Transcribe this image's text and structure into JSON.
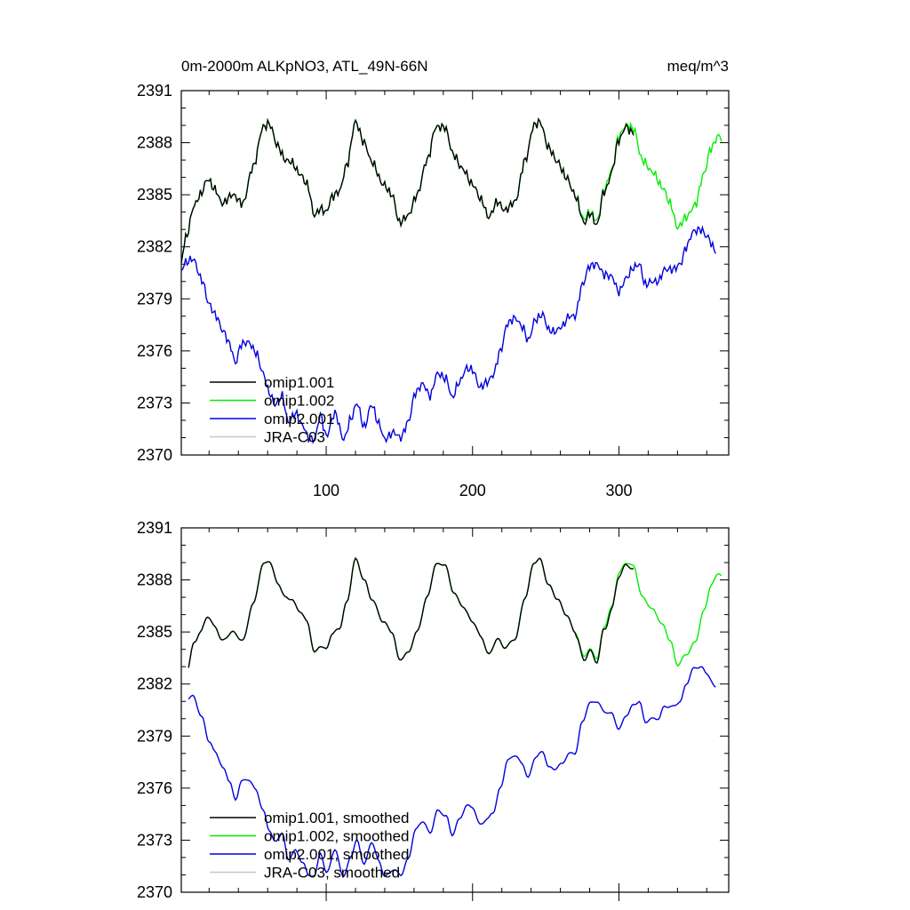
{
  "chart_data": [
    {
      "type": "line",
      "title_left": "0m-2000m ALKpNO3, ATL_49N-66N",
      "title_right": "meq/m^3",
      "xlabel": "",
      "ylabel": "",
      "xlim": [
        1,
        375
      ],
      "ylim": [
        2370,
        2391
      ],
      "y_ticks": [
        "2370",
        "2373",
        "2376",
        "2379",
        "2382",
        "2385",
        "2388",
        "2391"
      ],
      "x_ticks": [
        "100",
        "200",
        "300"
      ],
      "legend": [
        "omip1.001",
        "omip1.002",
        "omip2.001",
        "JRA-C03"
      ],
      "series": [
        {
          "name": "omip1.001",
          "color": "#000000",
          "x": [
            1,
            310
          ],
          "kind": "omip1",
          "values": "periodic"
        },
        {
          "name": "omip1.002",
          "color": "#00ee00",
          "x": [
            1,
            370
          ],
          "kind": "omip1",
          "values": "periodic"
        },
        {
          "name": "omip2.001",
          "color": "#0000dd",
          "x": [
            1,
            366
          ],
          "kind": "omip2",
          "values": "trend"
        },
        {
          "name": "JRA-C03",
          "color": "#c8c8c8",
          "x": [],
          "kind": "none",
          "values": "none"
        }
      ]
    },
    {
      "type": "line",
      "title_left": "",
      "title_right": "",
      "xlabel": "",
      "ylabel": "",
      "xlim": [
        1,
        375
      ],
      "ylim": [
        2370,
        2391
      ],
      "y_ticks": [
        "2370",
        "2373",
        "2376",
        "2379",
        "2382",
        "2385",
        "2388",
        "2391"
      ],
      "x_ticks": [],
      "legend": [
        "omip1.001, smoothed",
        "omip1.002, smoothed",
        "omip2.001, smoothed",
        "JRA-C03, smoothed"
      ],
      "series": [
        {
          "name": "omip1.001, smoothed",
          "color": "#000000",
          "x": [
            6,
            310
          ],
          "kind": "omip1",
          "values": "periodic"
        },
        {
          "name": "omip1.002, smoothed",
          "color": "#00ee00",
          "x": [
            6,
            370
          ],
          "kind": "omip1",
          "values": "periodic"
        },
        {
          "name": "omip2.001, smoothed",
          "color": "#0000dd",
          "x": [
            6,
            366
          ],
          "kind": "omip2",
          "values": "trend"
        },
        {
          "name": "JRA-C03, smoothed",
          "color": "#c8c8c8",
          "x": [],
          "kind": "none",
          "values": "none"
        }
      ]
    }
  ],
  "anchors": {
    "omip1_cycle": [
      [
        0,
        2380.7
      ],
      [
        4,
        2382.5
      ],
      [
        10,
        2384.4
      ],
      [
        14,
        2385.0
      ],
      [
        19,
        2385.9
      ],
      [
        24,
        2385.3
      ],
      [
        29,
        2384.5
      ],
      [
        36,
        2385.0
      ],
      [
        43,
        2384.5
      ],
      [
        50,
        2386.6
      ],
      [
        57,
        2388.9
      ],
      [
        61,
        2389.1
      ],
      [
        67,
        2387.8
      ],
      [
        72,
        2387.0
      ],
      [
        76,
        2386.9
      ],
      [
        82,
        2386.2
      ],
      [
        87,
        2385.6
      ],
      [
        92,
        2383.8
      ],
      [
        96,
        2384.2
      ],
      [
        100,
        2384.0
      ],
      [
        104,
        2384.9
      ],
      [
        109,
        2385.2
      ],
      [
        114,
        2386.7
      ],
      [
        120,
        2389.2
      ],
      [
        126,
        2388.0
      ],
      [
        131,
        2386.9
      ],
      [
        139,
        2385.6
      ],
      [
        145,
        2385.0
      ],
      [
        150,
        2383.4
      ],
      [
        156,
        2383.8
      ],
      [
        162,
        2385.0
      ],
      [
        169,
        2387.0
      ],
      [
        175,
        2388.9
      ],
      [
        181,
        2388.9
      ],
      [
        187,
        2387.3
      ],
      [
        193,
        2386.5
      ],
      [
        200,
        2385.6
      ],
      [
        206,
        2384.7
      ],
      [
        211,
        2383.7
      ],
      [
        217,
        2384.6
      ],
      [
        222,
        2384.1
      ],
      [
        229,
        2384.6
      ],
      [
        236,
        2387.0
      ],
      [
        242,
        2389.0
      ],
      [
        246,
        2389.2
      ],
      [
        252,
        2387.7
      ],
      [
        258,
        2386.9
      ],
      [
        264,
        2386.0
      ],
      [
        270,
        2385.0
      ],
      [
        276,
        2383.6
      ],
      [
        280,
        2384.0
      ],
      [
        285,
        2383.5
      ],
      [
        290,
        2385.3
      ],
      [
        295,
        2386.4
      ],
      [
        300,
        2388.4
      ],
      [
        305,
        2389.0
      ],
      [
        310,
        2388.8
      ],
      [
        316,
        2387.0
      ],
      [
        323,
        2386.3
      ],
      [
        330,
        2385.4
      ],
      [
        335,
        2384.5
      ],
      [
        340,
        2383.1
      ],
      [
        346,
        2383.7
      ],
      [
        352,
        2384.4
      ],
      [
        358,
        2386.2
      ],
      [
        363,
        2387.7
      ],
      [
        368,
        2388.4
      ],
      [
        374,
        2387.8
      ]
    ],
    "omip2_trend": [
      [
        0,
        2380.5
      ],
      [
        4,
        2381.1
      ],
      [
        9,
        2381.3
      ],
      [
        15,
        2380.1
      ],
      [
        20,
        2378.7
      ],
      [
        24,
        2378.1
      ],
      [
        30,
        2377.1
      ],
      [
        34,
        2376.4
      ],
      [
        38,
        2375.3
      ],
      [
        42,
        2376.4
      ],
      [
        47,
        2376.5
      ],
      [
        52,
        2375.9
      ],
      [
        57,
        2374.7
      ],
      [
        61,
        2373.6
      ],
      [
        65,
        2372.9
      ],
      [
        70,
        2373.4
      ],
      [
        74,
        2371.9
      ],
      [
        79,
        2372.4
      ],
      [
        84,
        2371.7
      ],
      [
        88,
        2371.0
      ],
      [
        92,
        2370.9
      ],
      [
        96,
        2372.3
      ],
      [
        100,
        2371.1
      ],
      [
        106,
        2372.4
      ],
      [
        112,
        2370.9
      ],
      [
        117,
        2372.1
      ],
      [
        121,
        2373.0
      ],
      [
        126,
        2371.6
      ],
      [
        131,
        2372.9
      ],
      [
        136,
        2371.8
      ],
      [
        140,
        2370.9
      ],
      [
        146,
        2371.3
      ],
      [
        151,
        2371.0
      ],
      [
        156,
        2371.9
      ],
      [
        161,
        2373.6
      ],
      [
        166,
        2374.1
      ],
      [
        171,
        2373.4
      ],
      [
        176,
        2374.7
      ],
      [
        182,
        2374.4
      ],
      [
        186,
        2373.3
      ],
      [
        191,
        2374.2
      ],
      [
        196,
        2375.0
      ],
      [
        200,
        2374.9
      ],
      [
        205,
        2373.9
      ],
      [
        210,
        2374.2
      ],
      [
        214,
        2374.6
      ],
      [
        219,
        2376.0
      ],
      [
        224,
        2377.6
      ],
      [
        229,
        2377.9
      ],
      [
        234,
        2377.4
      ],
      [
        238,
        2376.6
      ],
      [
        243,
        2377.8
      ],
      [
        248,
        2378.1
      ],
      [
        252,
        2377.2
      ],
      [
        256,
        2377.1
      ],
      [
        261,
        2377.4
      ],
      [
        266,
        2378.0
      ],
      [
        270,
        2378.0
      ],
      [
        275,
        2379.8
      ],
      [
        280,
        2380.9
      ],
      [
        285,
        2381.0
      ],
      [
        290,
        2380.4
      ],
      [
        295,
        2380.3
      ],
      [
        300,
        2379.4
      ],
      [
        305,
        2380.2
      ],
      [
        310,
        2380.8
      ],
      [
        314,
        2381.0
      ],
      [
        318,
        2379.8
      ],
      [
        322,
        2380.0
      ],
      [
        327,
        2380.0
      ],
      [
        331,
        2380.7
      ],
      [
        337,
        2380.7
      ],
      [
        342,
        2381.0
      ],
      [
        346,
        2382.0
      ],
      [
        351,
        2382.9
      ],
      [
        356,
        2383.0
      ],
      [
        360,
        2382.6
      ],
      [
        366,
        2381.8
      ]
    ]
  }
}
